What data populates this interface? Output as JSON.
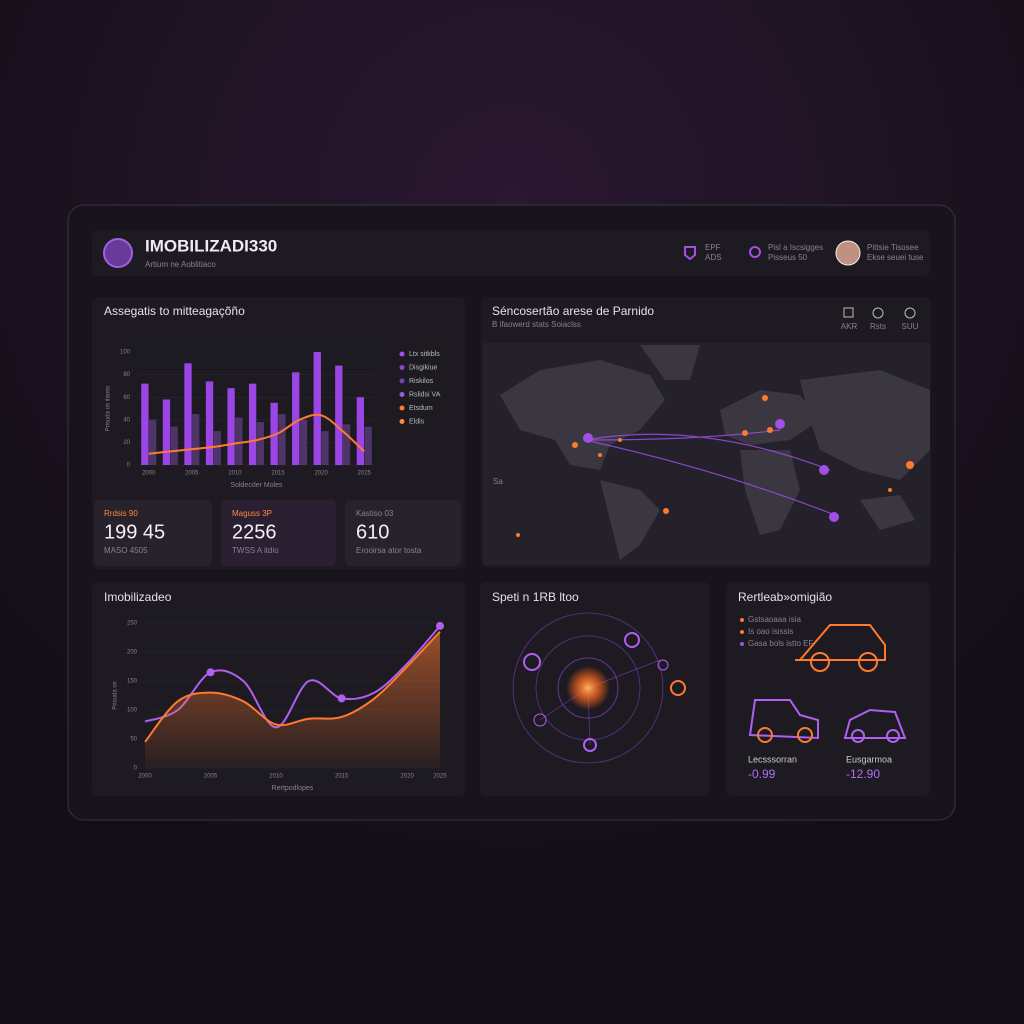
{
  "header": {
    "title": "IMOBILIZADI330",
    "subtitle": "Artium ne Aoblitiaco",
    "items": [
      {
        "title": "EPF",
        "subtitle": "ADS"
      },
      {
        "title": "Pisl a Iscsigges",
        "subtitle": "Pisseus 50"
      },
      {
        "title": "Pittsie Tisosee",
        "subtitle": "Ekse seuei tuse"
      }
    ]
  },
  "activity": {
    "type": "bar",
    "title": "Assegatis to mitteagaçõño",
    "y_label": "Prisuda os ilaoso",
    "x_label": "Soldecder Moles",
    "categories": [
      "2000",
      null,
      "2005",
      null,
      "2010",
      null,
      "2015",
      null,
      "2020",
      null,
      "2025"
    ],
    "ylim": [
      0,
      100
    ],
    "yticks": [
      0,
      20,
      40,
      60,
      80,
      100
    ],
    "legend": [
      {
        "name": "Ltx sitkbls",
        "color": "#a050e8"
      },
      {
        "name": "Disgikiue",
        "color": "#8a48c8"
      },
      {
        "name": "Riskilos",
        "color": "#7a3eb0"
      },
      {
        "name": "Rslidsi VA",
        "color": "#9a5ad8"
      },
      {
        "name": "Etsdum",
        "color": "#ff7a2e"
      },
      {
        "name": "Eldis",
        "color": "#ff8a3e"
      }
    ],
    "series": [
      {
        "kind": "bar",
        "color": "#9b45e4",
        "values": [
          72,
          58,
          90,
          74,
          68,
          72,
          55,
          82,
          100,
          88,
          60
        ]
      },
      {
        "kind": "bar",
        "color": "#4e3468",
        "values": [
          40,
          34,
          45,
          30,
          42,
          38,
          45,
          40,
          30,
          36,
          34
        ]
      },
      {
        "kind": "line",
        "color": "#ff7a2e",
        "values": [
          10,
          12,
          14,
          16,
          19,
          22,
          28,
          40,
          44,
          30,
          12
        ]
      }
    ]
  },
  "stats": [
    {
      "label": "Rrdsis 90",
      "value": "199 45",
      "caption": "MASO 4505"
    },
    {
      "label": "Maguss 3P",
      "value": "2256",
      "caption": "TWSS A itdio"
    },
    {
      "label": "Kastiso 03",
      "value": "610",
      "caption": "Erooirsa ator tosta"
    }
  ],
  "map": {
    "title": "Séncosertão arese de Parnido",
    "subtitle": "B ifaowerd stats Soiaclss",
    "controls": [
      "AKR",
      "Rsts",
      "SUU"
    ],
    "note": "Sa"
  },
  "trend": {
    "type": "line",
    "title": "Imobilizadeo",
    "y_label": "Prisuda os",
    "x_label": "Rertpodlopes",
    "categories": [
      "2000",
      null,
      "2005",
      null,
      "2010",
      null,
      "2015",
      null,
      "2020",
      "2025"
    ],
    "ylim": [
      0,
      250
    ],
    "yticks": [
      0,
      50,
      100,
      150,
      200,
      250
    ],
    "series": [
      {
        "color": "#b060f0",
        "values": [
          80,
          100,
          165,
          150,
          70,
          150,
          120,
          130,
          180,
          245
        ]
      },
      {
        "color": "#ff7a2e",
        "values": [
          45,
          115,
          130,
          115,
          75,
          85,
          88,
          120,
          175,
          235
        ]
      }
    ]
  },
  "radar": {
    "title": "Speti n 1RB ltoo"
  },
  "fleet": {
    "title": "Rertleab»omigião",
    "items": [
      "Gstsaoaaa isia",
      "Is oao isissis",
      "Gasa bols istto EF"
    ],
    "metrics": [
      {
        "label": "Lecsssorran",
        "value": "-0.99"
      },
      {
        "label": "Eusgarmoa",
        "value": "-12.90"
      }
    ]
  }
}
